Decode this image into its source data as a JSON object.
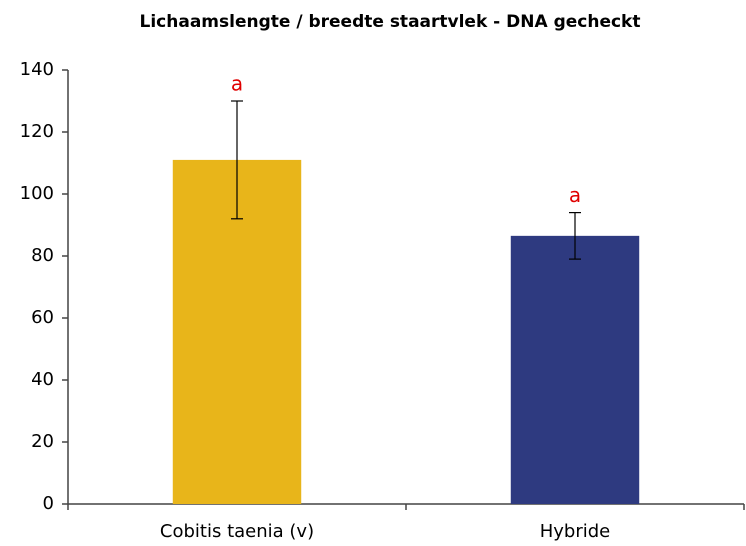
{
  "chart_data": {
    "type": "bar",
    "title": "Lichaamslengte / breedte staartvlek - DNA gecheckt",
    "categories": [
      "Cobitis taenia (v)",
      "Hybride"
    ],
    "values": [
      111,
      86.5
    ],
    "errors": [
      19,
      7.5
    ],
    "colors": [
      "#e8b51a",
      "#2e3a80"
    ],
    "annotations": [
      "a",
      "a"
    ],
    "ylim": [
      0,
      140
    ],
    "yticks": [
      0,
      20,
      40,
      60,
      80,
      100,
      120,
      140
    ],
    "grid": false
  }
}
